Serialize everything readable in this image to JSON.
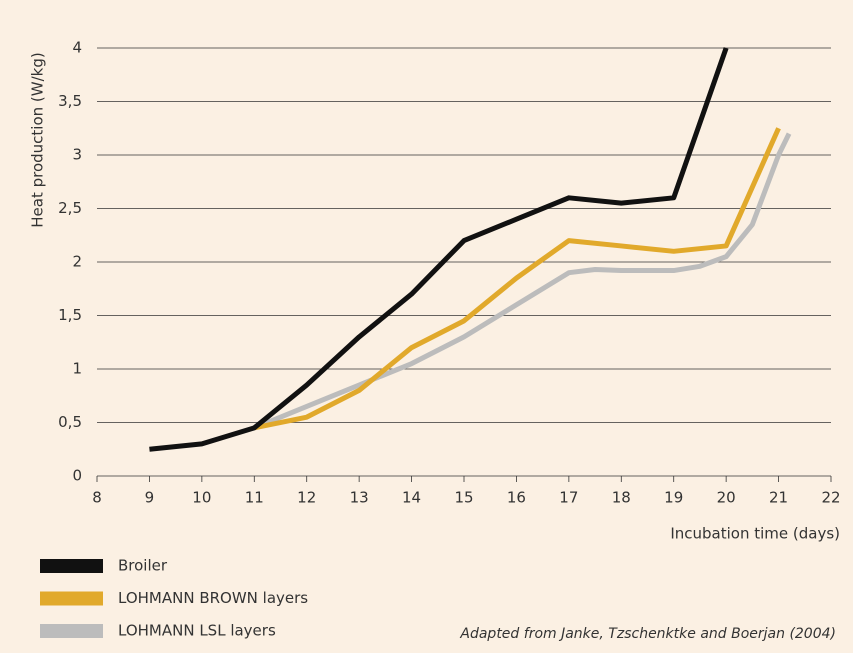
{
  "chart_data": {
    "type": "line",
    "ylabel": "Heat production (W/kg)",
    "xlabel": "Incubation time (days)",
    "note": "Adapted from Janke, Tzschenktke and Boerjan (2004)",
    "xlim": [
      8,
      22
    ],
    "xticks": [
      8,
      9,
      10,
      11,
      12,
      13,
      14,
      15,
      16,
      17,
      18,
      19,
      20,
      21,
      22
    ],
    "ylim": [
      0,
      4
    ],
    "yticks": [
      0,
      {
        "value": 0.5,
        "label": "0,5"
      },
      1,
      {
        "value": 1.5,
        "label": "1,5"
      },
      2,
      {
        "value": 2.5,
        "label": "2,5"
      },
      3,
      {
        "value": 3.5,
        "label": "3,5"
      },
      4
    ],
    "grid": true,
    "legend": "bottom-left",
    "series": [
      {
        "name": "Broiler",
        "color": "#111111",
        "x": [
          9,
          10,
          11,
          12,
          13,
          14,
          15,
          16,
          17,
          18,
          19,
          20
        ],
        "values": [
          0.25,
          0.3,
          0.45,
          0.85,
          1.3,
          1.7,
          2.2,
          2.4,
          2.6,
          2.55,
          2.6,
          4.0
        ]
      },
      {
        "name": "LOHMANN BROWN layers",
        "color": "#e1a92b",
        "x": [
          11,
          12,
          13,
          14,
          15,
          16,
          17,
          18,
          19,
          20,
          21
        ],
        "values": [
          0.45,
          0.55,
          0.8,
          1.2,
          1.45,
          1.85,
          2.2,
          2.15,
          2.1,
          2.15,
          3.25
        ]
      },
      {
        "name": "LOHMANN LSL layers",
        "color": "#bcbcbc",
        "x": [
          11,
          12,
          13,
          14,
          15,
          16,
          17,
          17.5,
          18,
          19,
          19.5,
          20,
          20.5,
          21,
          21.2
        ],
        "values": [
          0.45,
          0.65,
          0.85,
          1.05,
          1.3,
          1.6,
          1.9,
          1.93,
          1.92,
          1.92,
          1.96,
          2.05,
          2.35,
          3.0,
          3.2
        ]
      }
    ]
  }
}
